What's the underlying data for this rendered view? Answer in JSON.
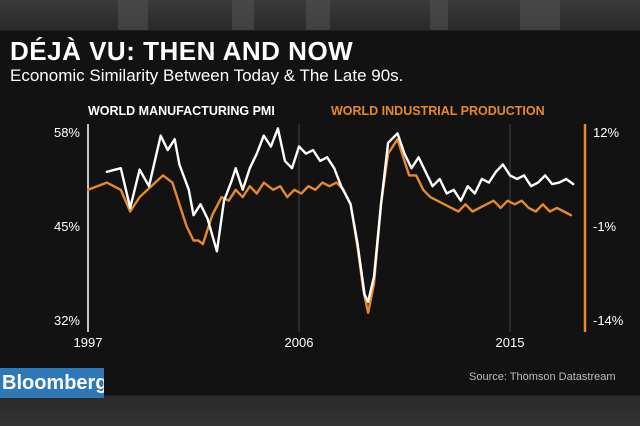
{
  "header": {
    "title": "DÉJÀ VU: THEN AND NOW",
    "subtitle": "Economic Similarity Between Today & The Late 90s."
  },
  "footer": {
    "logo": "Bloomberg",
    "source": "Source: Thomson Datastream"
  },
  "colors": {
    "pmi": "#ffffff",
    "ip": "#e8882c",
    "background": "#121212",
    "logo_bg": "#2f78b8"
  },
  "chart_data": {
    "type": "line",
    "title": "",
    "xlabel": "",
    "x_range": [
      1997,
      2018.2
    ],
    "x_ticks": [
      {
        "value": 1997,
        "label": "1997"
      },
      {
        "value": 2006,
        "label": "2006"
      },
      {
        "value": 2015,
        "label": "2015"
      }
    ],
    "y_left": {
      "range": [
        32,
        58
      ],
      "ticks": [
        {
          "value": 58,
          "label": "58%"
        },
        {
          "value": 45,
          "label": "45%"
        },
        {
          "value": 32,
          "label": "32%"
        }
      ]
    },
    "y_right": {
      "range": [
        -14,
        12
      ],
      "ticks": [
        {
          "value": 12,
          "label": "12%"
        },
        {
          "value": -1,
          "label": "-1%"
        },
        {
          "value": -14,
          "label": "-14%"
        }
      ]
    },
    "grid": "vertical",
    "legend_position": "top",
    "series": [
      {
        "name": "WORLD MANUFACTURING PMI",
        "axis": "left",
        "x": [
          1997.8,
          1998.4,
          1998.8,
          1999.2,
          1999.6,
          2000.1,
          2000.4,
          2000.7,
          2000.9,
          2001.3,
          2001.5,
          2001.8,
          2002.1,
          2002.5,
          2002.8,
          2003.1,
          2003.3,
          2003.6,
          2003.9,
          2004.2,
          2004.5,
          2004.8,
          2005.1,
          2005.4,
          2005.7,
          2006.0,
          2006.3,
          2006.6,
          2006.9,
          2007.2,
          2007.5,
          2007.8,
          2008.2,
          2008.5,
          2008.8,
          2008.95,
          2009.2,
          2009.5,
          2009.8,
          2010.2,
          2010.5,
          2010.8,
          2011.1,
          2011.4,
          2011.7,
          2012.0,
          2012.3,
          2012.6,
          2012.9,
          2013.2,
          2013.5,
          2013.8,
          2014.1,
          2014.4,
          2014.7,
          2015.0,
          2015.3,
          2015.6,
          2015.9,
          2016.2,
          2016.5,
          2016.8,
          2017.1,
          2017.4,
          2017.7
        ],
        "values": [
          52.5,
          53.0,
          47.5,
          52.8,
          50.5,
          57.5,
          55.5,
          57.0,
          53.5,
          50.0,
          46.5,
          48.0,
          46.0,
          41.5,
          48.5,
          51.0,
          53.0,
          50.0,
          53.0,
          55.0,
          57.5,
          56.0,
          58.5,
          54.0,
          53.0,
          56.0,
          55.0,
          55.5,
          54.0,
          54.5,
          53.0,
          50.5,
          48.0,
          42.5,
          35.5,
          34.5,
          38.0,
          48.0,
          56.5,
          57.8,
          55.0,
          53.0,
          54.5,
          52.5,
          50.5,
          51.5,
          49.5,
          50.0,
          48.5,
          50.5,
          49.5,
          51.5,
          51.0,
          52.5,
          53.5,
          52.0,
          51.5,
          52.0,
          50.5,
          51.0,
          52.0,
          50.8,
          51.0,
          51.5,
          50.8
        ]
      },
      {
        "name": "WORLD INDUSTRIAL PRODUCTION",
        "axis": "right",
        "x": [
          1997.0,
          1997.8,
          1998.4,
          1998.8,
          1999.2,
          1999.7,
          2000.2,
          2000.6,
          2000.9,
          2001.2,
          2001.5,
          2001.7,
          2001.9,
          2002.3,
          2002.7,
          2003.0,
          2003.3,
          2003.6,
          2003.9,
          2004.2,
          2004.5,
          2004.9,
          2005.2,
          2005.5,
          2005.8,
          2006.1,
          2006.4,
          2006.7,
          2007.0,
          2007.3,
          2007.6,
          2007.9,
          2008.2,
          2008.5,
          2008.75,
          2008.95,
          2009.2,
          2009.5,
          2009.8,
          2010.2,
          2010.4,
          2010.7,
          2011.0,
          2011.3,
          2011.6,
          2011.9,
          2012.2,
          2012.5,
          2012.8,
          2013.1,
          2013.4,
          2013.7,
          2014.0,
          2014.3,
          2014.6,
          2014.9,
          2015.2,
          2015.5,
          2015.8,
          2016.1,
          2016.4,
          2016.7,
          2017.0,
          2017.3,
          2017.6
        ],
        "values": [
          4.0,
          5.0,
          4.0,
          1.0,
          3.0,
          4.5,
          6.0,
          5.0,
          2.0,
          -1.0,
          -3.0,
          -3.0,
          -3.5,
          0.5,
          3.0,
          2.5,
          4.0,
          3.0,
          4.5,
          3.5,
          5.0,
          4.0,
          4.5,
          3.0,
          4.0,
          3.5,
          4.5,
          4.0,
          5.0,
          4.5,
          5.0,
          4.0,
          2.0,
          -4.0,
          -10.0,
          -13.0,
          -9.0,
          2.0,
          9.0,
          11.0,
          9.0,
          6.0,
          6.0,
          4.0,
          3.0,
          2.5,
          2.0,
          1.5,
          1.0,
          2.0,
          1.0,
          1.5,
          2.0,
          2.5,
          1.5,
          2.5,
          2.0,
          2.5,
          1.5,
          1.0,
          2.0,
          1.0,
          1.5,
          1.0,
          0.5
        ]
      }
    ]
  }
}
